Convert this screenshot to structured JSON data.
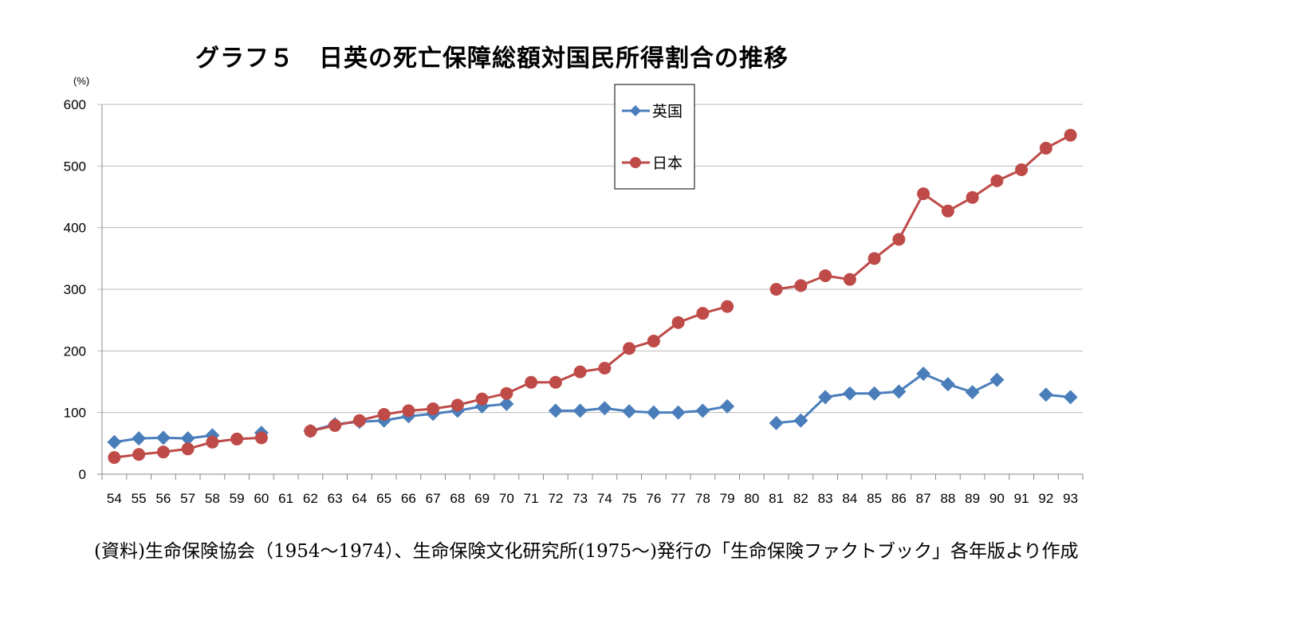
{
  "chart_data": {
    "type": "line",
    "title": "グラフ５　日英の死亡保障総額対国民所得割合の推移",
    "ylabel": "(%)",
    "xlabel": "",
    "ylim": [
      0,
      600
    ],
    "yticks": [
      0,
      100,
      200,
      300,
      400,
      500,
      600
    ],
    "grid": true,
    "legend_position": "top-center",
    "categories": [
      "54",
      "55",
      "56",
      "57",
      "58",
      "59",
      "60",
      "61",
      "62",
      "63",
      "64",
      "65",
      "66",
      "67",
      "68",
      "69",
      "70",
      "71",
      "72",
      "73",
      "74",
      "75",
      "76",
      "77",
      "78",
      "79",
      "80",
      "81",
      "82",
      "83",
      "84",
      "85",
      "86",
      "87",
      "88",
      "89",
      "90",
      "91",
      "92",
      "93"
    ],
    "series": [
      {
        "name": "英国",
        "color": "#4a7ebb",
        "marker": "diamond",
        "values": [
          52,
          58,
          59,
          58,
          63,
          null,
          67,
          null,
          70,
          81,
          85,
          87,
          94,
          98,
          103,
          110,
          114,
          null,
          103,
          103,
          107,
          102,
          100,
          100,
          103,
          110,
          null,
          83,
          87,
          125,
          131,
          131,
          134,
          163,
          146,
          133,
          153,
          null,
          129,
          125
        ]
      },
      {
        "name": "日本",
        "color": "#be4b48",
        "marker": "circle",
        "values": [
          27,
          32,
          36,
          41,
          52,
          57,
          59,
          null,
          70,
          79,
          87,
          97,
          103,
          106,
          112,
          122,
          131,
          149,
          149,
          166,
          172,
          204,
          216,
          246,
          261,
          272,
          null,
          300,
          306,
          322,
          316,
          350,
          381,
          455,
          427,
          449,
          476,
          494,
          529,
          550
        ]
      }
    ],
    "source_note": "(資料)生命保険協会（1954～1974）、生命保険文化研究所(1975～)発行の「生命保険ファクトブック」各年版より作成"
  }
}
